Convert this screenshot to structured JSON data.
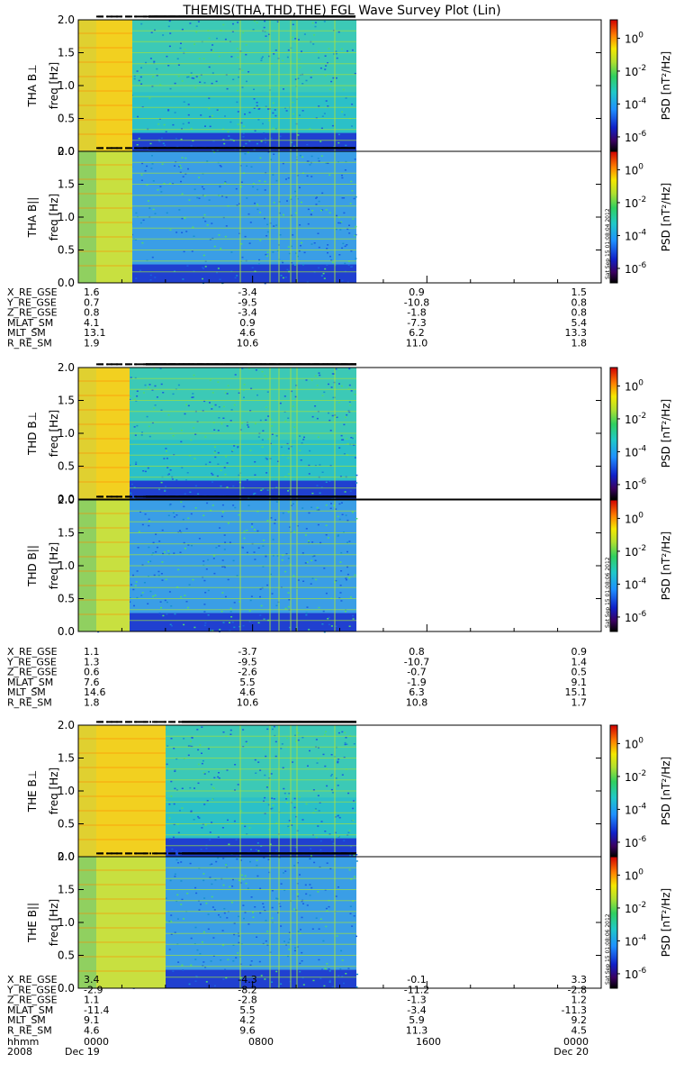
{
  "title": "THEMIS(THA,THD,THE) FGL Wave Survey Plot (Lin)",
  "colorbar": {
    "label": "PSD [nT²/Hz]",
    "ticks": [
      {
        "base": "10",
        "exp": "0"
      },
      {
        "base": "10",
        "exp": "-2"
      },
      {
        "base": "10",
        "exp": "-4"
      },
      {
        "base": "10",
        "exp": "-6"
      }
    ]
  },
  "stamps": [
    "Sat Sep 15 01:08:04 2012",
    "Sat Sep 15 01:08:06 2012",
    "Sat Sep 15 01:08:06 2012"
  ],
  "ephemeris_labels": [
    "X_RE_GSE",
    "Y_RE_GSE",
    "Z_RE_GSE",
    "MLAT_SM",
    "MLT_SM",
    "R_RE_SM"
  ],
  "time_axis": {
    "labels": [
      "hhmm",
      "2008"
    ],
    "ticks": [
      {
        "hhmm": "0000",
        "date": "Dec 19"
      },
      {
        "hhmm": "0800",
        "date": ""
      },
      {
        "hhmm": "1600",
        "date": ""
      },
      {
        "hhmm": "0000",
        "date": "Dec 20"
      }
    ]
  },
  "chart_data": {
    "type": "heatmap",
    "title": "THEMIS(THA,THD,THE) FGL Wave Survey Plot (Lin)",
    "xlabel": "hhmm",
    "ylabel": "freq [Hz]",
    "ylim": [
      0,
      2.0
    ],
    "yticks": [
      "0.0",
      "0.5",
      "1.0",
      "1.5",
      "2.0"
    ],
    "color_scale": "log",
    "colorbar_range": [
      "10^-6",
      "10^0"
    ],
    "probes": [
      {
        "probe": "THA",
        "panels": [
          "THA B⊥",
          "THA B||"
        ],
        "ephemeris": [
          [
            "1.6",
            "-3.4",
            "0.9",
            "1.5"
          ],
          [
            "0.7",
            "-9.5",
            "-10.8",
            "0.8"
          ],
          [
            "0.8",
            "-3.4",
            "-1.8",
            "0.8"
          ],
          [
            "4.1",
            "0.9",
            "-7.3",
            "5.4"
          ],
          [
            "13.1",
            "4.6",
            "6.2",
            "13.3"
          ],
          [
            "1.9",
            "10.6",
            "11.0",
            "1.8"
          ]
        ]
      },
      {
        "probe": "THD",
        "panels": [
          "THD B⊥",
          "THD B||"
        ],
        "ephemeris": [
          [
            "1.1",
            "-3.7",
            "0.8",
            "0.9"
          ],
          [
            "1.3",
            "-9.5",
            "-10.7",
            "1.4"
          ],
          [
            "0.6",
            "-2.6",
            "-0.7",
            "0.5"
          ],
          [
            "7.6",
            "5.5",
            "-1.9",
            "9.1"
          ],
          [
            "14.6",
            "4.6",
            "6.3",
            "15.1"
          ],
          [
            "1.8",
            "10.6",
            "10.8",
            "1.7"
          ]
        ]
      },
      {
        "probe": "THE",
        "panels": [
          "THE B⊥",
          "THE B||"
        ],
        "ephemeris": [
          [
            "3.4",
            "-4.3",
            "-0.1",
            "3.3"
          ],
          [
            "-2.9",
            "-8.2",
            "-11.2",
            "-2.8"
          ],
          [
            "1.1",
            "-2.8",
            "-1.3",
            "1.2"
          ],
          [
            "-11.4",
            "5.5",
            "-3.4",
            "-11.3"
          ],
          [
            "9.1",
            "4.2",
            "5.9",
            "9.2"
          ],
          [
            "4.6",
            "9.6",
            "11.3",
            "4.5"
          ]
        ]
      }
    ]
  }
}
